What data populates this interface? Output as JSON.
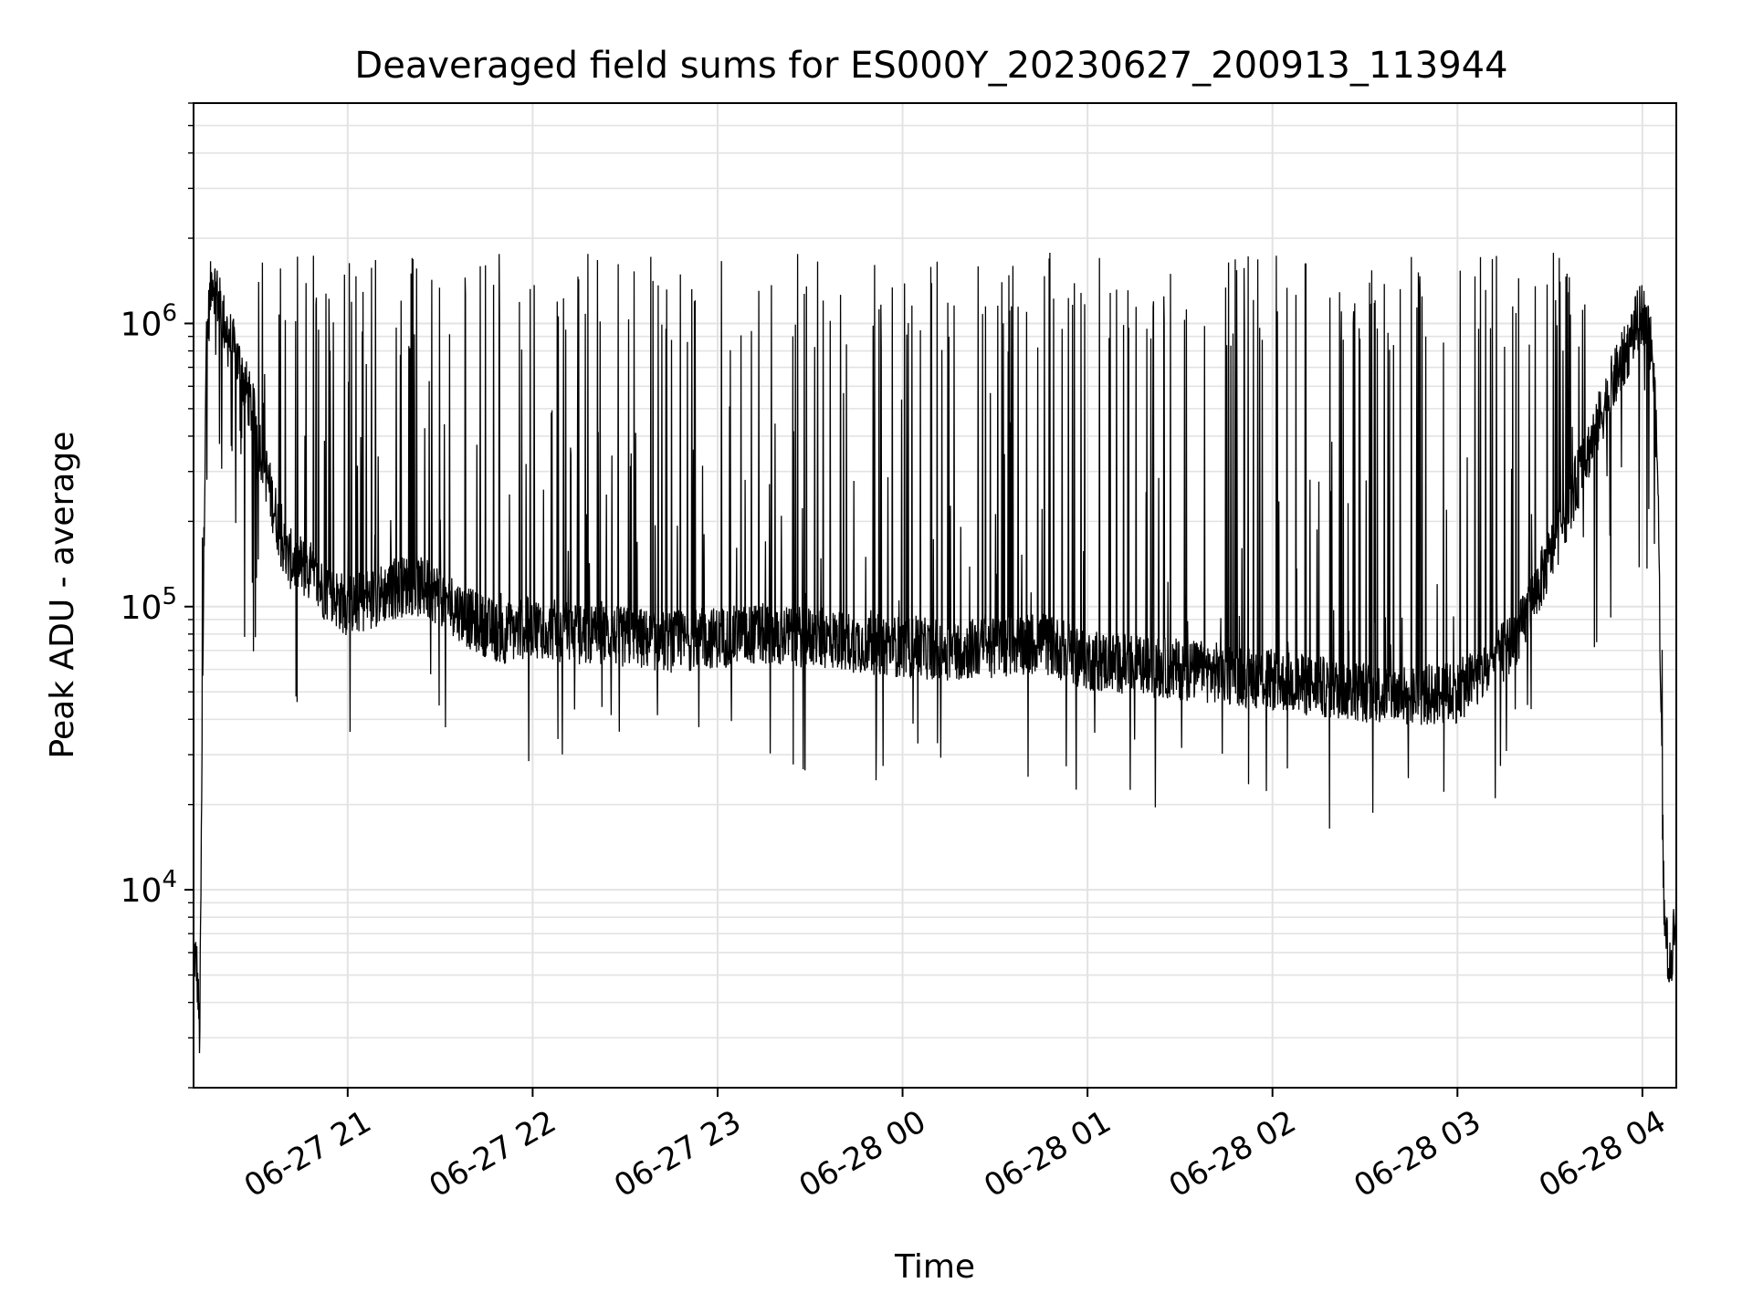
{
  "chart_data": {
    "type": "line",
    "title": "Deaveraged field sums for ES000Y_20230627_200913_113944",
    "xlabel": "Time",
    "ylabel": "Peak ADU - average",
    "yscale": "log",
    "ylim": [
      2000,
      6000000
    ],
    "xlim": [
      "06-27 20:10",
      "06-28 04:11"
    ],
    "grid": true,
    "line_color": "#000000",
    "x_ticks": [
      {
        "value": "06-27 21:00",
        "label": "06-27 21"
      },
      {
        "value": "06-27 22:00",
        "label": "06-27 22"
      },
      {
        "value": "06-27 23:00",
        "label": "06-27 23"
      },
      {
        "value": "06-28 00:00",
        "label": "06-28 00"
      },
      {
        "value": "06-28 01:00",
        "label": "06-28 01"
      },
      {
        "value": "06-28 02:00",
        "label": "06-28 02"
      },
      {
        "value": "06-28 03:00",
        "label": "06-28 03"
      },
      {
        "value": "06-28 04:00",
        "label": "06-28 04"
      }
    ],
    "y_ticks": [
      {
        "value": 10000,
        "base": "10",
        "exp": "4"
      },
      {
        "value": 100000,
        "base": "10",
        "exp": "5"
      },
      {
        "value": 1000000,
        "base": "10",
        "exp": "6"
      }
    ],
    "series": [
      {
        "x": [
          "06-27 20:10",
          "06-27 20:11",
          "06-27 20:12",
          "06-27 20:13",
          "06-27 20:14",
          "06-27 20:16",
          "06-27 20:18",
          "06-27 20:20",
          "06-27 20:25",
          "06-27 20:30",
          "06-27 20:35",
          "06-27 20:40",
          "06-27 20:45",
          "06-27 20:50",
          "06-27 20:55",
          "06-27 21:00",
          "06-27 21:10",
          "06-27 21:20",
          "06-27 21:30",
          "06-27 21:40",
          "06-27 21:50",
          "06-27 22:00",
          "06-27 22:15",
          "06-27 22:30",
          "06-27 22:45",
          "06-27 23:00",
          "06-27 23:15",
          "06-27 23:30",
          "06-27 23:45",
          "06-28 00:00",
          "06-28 00:15",
          "06-28 00:30",
          "06-28 00:45",
          "06-28 01:00",
          "06-28 01:15",
          "06-28 01:30",
          "06-28 01:45",
          "06-28 02:00",
          "06-28 02:15",
          "06-28 02:30",
          "06-28 02:45",
          "06-28 03:00",
          "06-28 03:10",
          "06-28 03:20",
          "06-28 03:30",
          "06-28 03:40",
          "06-28 03:50",
          "06-28 03:55",
          "06-28 03:58",
          "06-28 04:00",
          "06-28 04:03",
          "06-28 04:05",
          "06-28 04:07",
          "06-28 04:09",
          "06-28 04:11"
        ],
        "y": [
          6000,
          5500,
          3000,
          60000,
          800000,
          1500000,
          1200000,
          1000000,
          700000,
          450000,
          250000,
          150000,
          140000,
          120000,
          110000,
          100000,
          110000,
          120000,
          110000,
          90000,
          80000,
          85000,
          80000,
          78000,
          75000,
          78000,
          80000,
          78000,
          75000,
          72000,
          70000,
          72000,
          75000,
          65000,
          62000,
          60000,
          58000,
          55000,
          52000,
          50000,
          48000,
          50000,
          60000,
          80000,
          150000,
          300000,
          600000,
          800000,
          1000000,
          1100000,
          900000,
          300000,
          8000,
          5000,
          10000
        ]
      }
    ]
  }
}
